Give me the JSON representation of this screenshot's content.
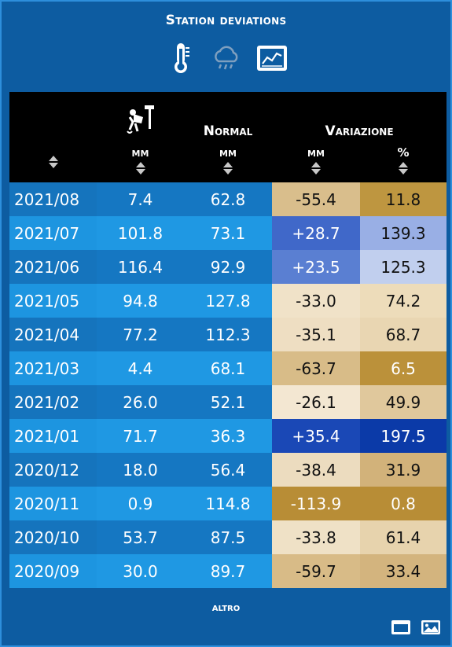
{
  "header": {
    "title": "Station deviations"
  },
  "icons": [
    "thermometer-icon",
    "rain-cloud-icon",
    "chart-icon"
  ],
  "table": {
    "columns": {
      "station_icon": "station-icon",
      "normal": "Normal",
      "variazione": "Variazione",
      "unit_mm": "mm",
      "unit_pct": "%"
    },
    "rows": [
      {
        "date": "2021/08",
        "mm": "7.4",
        "normal": "62.8",
        "var_mm": "-55.4",
        "var_pct": "11.8",
        "color_mm": "#d9be8c",
        "color_pct": "#be9640"
      },
      {
        "date": "2021/07",
        "mm": "101.8",
        "normal": "73.1",
        "var_mm": "+28.7",
        "var_pct": "139.3",
        "color_mm": "#4068c9",
        "color_pct": "#99afe5"
      },
      {
        "date": "2021/06",
        "mm": "116.4",
        "normal": "92.9",
        "var_mm": "+23.5",
        "var_pct": "125.3",
        "color_mm": "#5a7fd2",
        "color_pct": "#c1cfee"
      },
      {
        "date": "2021/05",
        "mm": "94.8",
        "normal": "127.8",
        "var_mm": "-33.0",
        "var_pct": "74.2",
        "color_mm": "#f0e2c8",
        "color_pct": "#eddcba"
      },
      {
        "date": "2021/04",
        "mm": "77.2",
        "normal": "112.3",
        "var_mm": "-35.1",
        "var_pct": "68.7",
        "color_mm": "#eedec2",
        "color_pct": "#e9d6b2"
      },
      {
        "date": "2021/03",
        "mm": "4.4",
        "normal": "68.1",
        "var_mm": "-63.7",
        "var_pct": "6.5",
        "color_mm": "#d8bc88",
        "color_pct": "#bb913a"
      },
      {
        "date": "2021/02",
        "mm": "26.0",
        "normal": "52.1",
        "var_mm": "-26.1",
        "var_pct": "49.9",
        "color_mm": "#f3e7d2",
        "color_pct": "#e0c89c"
      },
      {
        "date": "2021/01",
        "mm": "71.7",
        "normal": "36.3",
        "var_mm": "+35.4",
        "var_pct": "197.5",
        "color_mm": "#1a48b6",
        "color_pct": "#0b3aa8"
      },
      {
        "date": "2020/12",
        "mm": "18.0",
        "normal": "56.4",
        "var_mm": "-38.4",
        "var_pct": "31.9",
        "color_mm": "#ecdcbf",
        "color_pct": "#d2b27a"
      },
      {
        "date": "2020/11",
        "mm": "0.9",
        "normal": "114.8",
        "var_mm": "-113.9",
        "var_pct": "0.8",
        "color_mm": "#b88d36",
        "color_pct": "#b88d36"
      },
      {
        "date": "2020/10",
        "mm": "53.7",
        "normal": "87.5",
        "var_mm": "-33.8",
        "var_pct": "61.4",
        "color_mm": "#efe1c6",
        "color_pct": "#e7d3ad"
      },
      {
        "date": "2020/09",
        "mm": "30.0",
        "normal": "89.7",
        "var_mm": "-59.7",
        "var_pct": "33.4",
        "color_mm": "#d8bb87",
        "color_pct": "#d3b47e"
      }
    ],
    "stripe_colors": {
      "odd_date": "#1574bd",
      "even_date": "#1d95e0",
      "odd_cell": "#1577c2",
      "even_cell": "#1f98e3"
    }
  },
  "footer": {
    "altro": "altro"
  }
}
